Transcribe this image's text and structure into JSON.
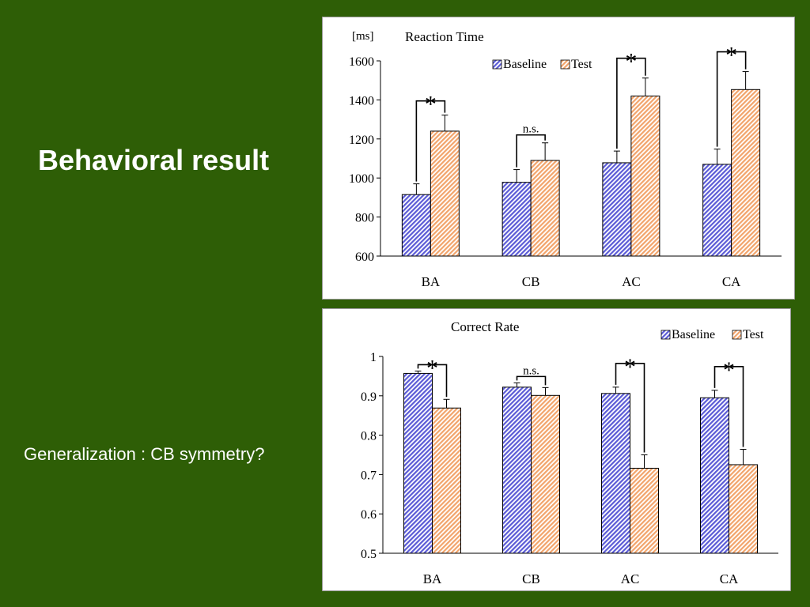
{
  "slide": {
    "title": "Behavioral result",
    "note": "Generalization : CB symmetry?"
  },
  "colors": {
    "background": "#2e5e06",
    "baseline_fill": "#5b5bd6",
    "test_fill": "#f2a46b"
  },
  "chart_data": [
    {
      "type": "bar",
      "title": "Reaction Time",
      "unit_label": "[ms]",
      "categories": [
        "BA",
        "CB",
        "AC",
        "CA"
      ],
      "series": [
        {
          "name": "Baseline",
          "values": [
            915,
            978,
            1078,
            1070
          ],
          "error": [
            55,
            65,
            60,
            78
          ]
        },
        {
          "name": "Test",
          "values": [
            1240,
            1090,
            1420,
            1453
          ],
          "error": [
            82,
            90,
            92,
            92
          ]
        }
      ],
      "ylim": [
        600,
        1600
      ],
      "yticks": [
        "600",
        "800",
        "1000",
        "1200",
        "1400",
        "1600"
      ],
      "legend": "top-center",
      "significance": [
        "*",
        "n.s.",
        "*",
        "*"
      ]
    },
    {
      "type": "bar",
      "title": "Correct Rate",
      "categories": [
        "BA",
        "CB",
        "AC",
        "CA"
      ],
      "series": [
        {
          "name": "Baseline",
          "values": [
            0.957,
            0.922,
            0.906,
            0.895
          ],
          "error": [
            0.006,
            0.011,
            0.016,
            0.019
          ]
        },
        {
          "name": "Test",
          "values": [
            0.869,
            0.901,
            0.716,
            0.725
          ],
          "error": [
            0.022,
            0.02,
            0.034,
            0.039
          ]
        }
      ],
      "ylim": [
        0.5,
        1
      ],
      "yticks": [
        "0.5",
        "0.6",
        "0.7",
        "0.8",
        "0.9",
        "1"
      ],
      "legend": "top-right",
      "significance": [
        "*",
        "n.s.",
        "*",
        "*"
      ]
    }
  ]
}
